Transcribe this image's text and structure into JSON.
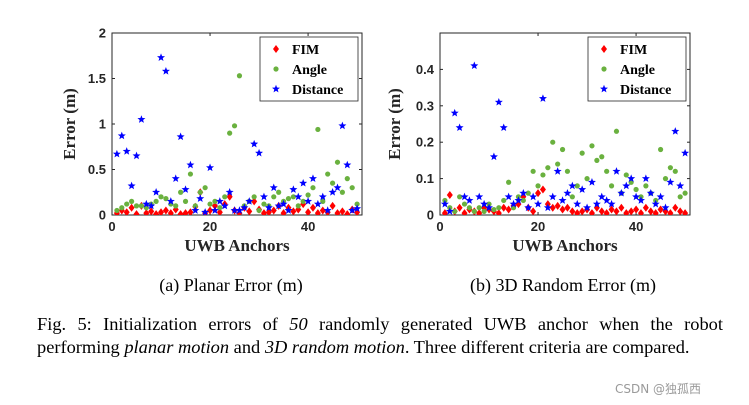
{
  "colors": {
    "fim": "#ff0000",
    "angle": "#6ab13f",
    "distance": "#0000ff",
    "axis": "#262626"
  },
  "chart_data": [
    {
      "type": "scatter",
      "subcaption": "(a) Planar Error (m)",
      "xlabel": "UWB Anchors",
      "ylabel": "Error (m)",
      "xlim": [
        0,
        51
      ],
      "ylim": [
        0,
        2
      ],
      "xticks": [
        0,
        20,
        40
      ],
      "yticks": [
        0,
        0.5,
        1,
        1.5,
        2
      ],
      "ytick_labels": [
        "0",
        "0.5",
        "1",
        "1.5",
        "2"
      ],
      "legend": {
        "placement": "top-right",
        "entries": [
          "FIM",
          "Angle",
          "Distance"
        ]
      },
      "series": [
        {
          "name": "FIM",
          "marker": "diamond",
          "color": "#ff0000",
          "x": [
            1,
            2,
            3,
            4,
            5,
            6,
            7,
            8,
            9,
            10,
            11,
            12,
            13,
            14,
            15,
            16,
            17,
            18,
            19,
            20,
            21,
            22,
            23,
            24,
            25,
            26,
            27,
            28,
            29,
            30,
            31,
            32,
            33,
            34,
            35,
            36,
            37,
            38,
            39,
            40,
            41,
            42,
            43,
            44,
            45,
            46,
            47,
            48,
            49,
            50
          ],
          "y": [
            0.02,
            0.05,
            0.03,
            0.08,
            0.01,
            0.1,
            0.02,
            0.04,
            0.01,
            0.03,
            0.05,
            0.02,
            0.06,
            0.01,
            0.02,
            0.03,
            0.09,
            0.25,
            0.02,
            0.05,
            0.1,
            0.03,
            0.12,
            0.2,
            0.05,
            0.02,
            0.08,
            0.04,
            0.15,
            0.06,
            0.02,
            0.03,
            0.05,
            0.1,
            0.02,
            0.08,
            0.04,
            0.06,
            0.12,
            0.03,
            0.08,
            0.02,
            0.05,
            0.03,
            0.1,
            0.02,
            0.04,
            0.01,
            0.06,
            0.03
          ]
        },
        {
          "name": "Angle",
          "marker": "circle",
          "color": "#6ab13f",
          "x": [
            1,
            2,
            3,
            4,
            5,
            6,
            7,
            8,
            9,
            10,
            11,
            12,
            13,
            14,
            15,
            16,
            17,
            18,
            19,
            20,
            21,
            22,
            23,
            24,
            25,
            26,
            27,
            28,
            29,
            30,
            31,
            32,
            33,
            34,
            35,
            36,
            37,
            38,
            39,
            40,
            41,
            42,
            43,
            44,
            45,
            46,
            47,
            48,
            49,
            50
          ],
          "y": [
            0.05,
            0.08,
            0.12,
            0.15,
            0.1,
            0.1,
            0.08,
            0.12,
            0.15,
            0.2,
            0.18,
            0.12,
            0.1,
            0.25,
            0.15,
            0.45,
            0.1,
            0.25,
            0.3,
            0.12,
            0.15,
            0.08,
            0.2,
            0.9,
            0.98,
            1.53,
            0.1,
            0.15,
            0.2,
            0.05,
            0.12,
            0.1,
            0.2,
            0.25,
            0.15,
            0.18,
            0.2,
            0.1,
            0.15,
            0.22,
            0.3,
            0.94,
            0.15,
            0.45,
            0.35,
            0.58,
            0.25,
            0.4,
            0.3,
            0.12
          ]
        },
        {
          "name": "Distance",
          "marker": "star",
          "color": "#0000ff",
          "x": [
            1,
            2,
            3,
            4,
            5,
            6,
            7,
            8,
            9,
            10,
            11,
            12,
            13,
            14,
            15,
            16,
            17,
            18,
            19,
            20,
            21,
            22,
            23,
            24,
            25,
            26,
            27,
            28,
            29,
            30,
            31,
            32,
            33,
            34,
            35,
            36,
            37,
            38,
            39,
            40,
            41,
            42,
            43,
            44,
            45,
            46,
            47,
            48,
            49,
            50
          ],
          "y": [
            0.67,
            0.87,
            0.7,
            0.32,
            0.65,
            1.05,
            0.12,
            0.1,
            0.25,
            1.73,
            1.58,
            0.15,
            0.4,
            0.86,
            0.28,
            0.55,
            0.05,
            0.18,
            0.03,
            0.52,
            0.05,
            0.15,
            0.1,
            0.25,
            0.05,
            0.05,
            0.08,
            0.15,
            0.78,
            0.68,
            0.2,
            0.08,
            0.3,
            0.1,
            0.12,
            0.05,
            0.28,
            0.2,
            0.35,
            0.15,
            0.4,
            0.12,
            0.2,
            0.05,
            0.25,
            0.3,
            0.98,
            0.55,
            0.05,
            0.07
          ]
        }
      ]
    },
    {
      "type": "scatter",
      "subcaption": "(b) 3D Random Error (m)",
      "xlabel": "UWB Anchors",
      "ylabel": "Error (m)",
      "xlim": [
        0,
        51
      ],
      "ylim": [
        0,
        0.5
      ],
      "xticks": [
        0,
        20,
        40
      ],
      "yticks": [
        0,
        0.1,
        0.2,
        0.3,
        0.4
      ],
      "ytick_labels": [
        "0",
        "0.1",
        "0.2",
        "0.3",
        "0.4"
      ],
      "legend": {
        "placement": "top-right",
        "entries": [
          "FIM",
          "Angle",
          "Distance"
        ]
      },
      "series": [
        {
          "name": "FIM",
          "marker": "diamond",
          "color": "#ff0000",
          "x": [
            1,
            2,
            3,
            4,
            5,
            6,
            7,
            8,
            9,
            10,
            11,
            12,
            13,
            14,
            15,
            16,
            17,
            18,
            19,
            20,
            21,
            22,
            23,
            24,
            25,
            26,
            27,
            28,
            29,
            30,
            31,
            32,
            33,
            34,
            35,
            36,
            37,
            38,
            39,
            40,
            41,
            42,
            43,
            44,
            45,
            46,
            47,
            48,
            49,
            50
          ],
          "y": [
            0.005,
            0.055,
            0.01,
            0.02,
            0.005,
            0.015,
            0.01,
            0.005,
            0.02,
            0.015,
            0.01,
            0.005,
            0.02,
            0.015,
            0.025,
            0.03,
            0.05,
            0.02,
            0.01,
            0.06,
            0.07,
            0.03,
            0.02,
            0.025,
            0.015,
            0.02,
            0.01,
            0.005,
            0.01,
            0.015,
            0.005,
            0.02,
            0.01,
            0.005,
            0.015,
            0.01,
            0.02,
            0.005,
            0.01,
            0.015,
            0.005,
            0.02,
            0.01,
            0.005,
            0.015,
            0.01,
            0.005,
            0.02,
            0.01,
            0.005
          ]
        },
        {
          "name": "Angle",
          "marker": "circle",
          "color": "#6ab13f",
          "x": [
            1,
            2,
            3,
            4,
            5,
            6,
            7,
            8,
            9,
            10,
            11,
            12,
            13,
            14,
            15,
            16,
            17,
            18,
            19,
            20,
            21,
            22,
            23,
            24,
            25,
            26,
            27,
            28,
            29,
            30,
            31,
            32,
            33,
            34,
            35,
            36,
            37,
            38,
            39,
            40,
            41,
            42,
            43,
            44,
            45,
            46,
            47,
            48,
            49,
            50
          ],
          "y": [
            0.04,
            0.02,
            0.01,
            0.05,
            0.03,
            0.02,
            0.01,
            0.02,
            0.01,
            0.03,
            0.015,
            0.02,
            0.04,
            0.09,
            0.02,
            0.05,
            0.04,
            0.06,
            0.12,
            0.08,
            0.11,
            0.13,
            0.2,
            0.14,
            0.18,
            0.12,
            0.05,
            0.08,
            0.17,
            0.1,
            0.19,
            0.15,
            0.16,
            0.12,
            0.08,
            0.23,
            0.06,
            0.11,
            0.09,
            0.07,
            0.05,
            0.08,
            0.06,
            0.04,
            0.18,
            0.1,
            0.13,
            0.12,
            0.05,
            0.06
          ]
        },
        {
          "name": "Distance",
          "marker": "star",
          "color": "#0000ff",
          "x": [
            1,
            2,
            3,
            4,
            5,
            6,
            7,
            8,
            9,
            10,
            11,
            12,
            13,
            14,
            15,
            16,
            17,
            18,
            19,
            20,
            21,
            22,
            23,
            24,
            25,
            26,
            27,
            28,
            29,
            30,
            31,
            32,
            33,
            34,
            35,
            36,
            37,
            38,
            39,
            40,
            41,
            42,
            43,
            44,
            45,
            46,
            47,
            48,
            49,
            50
          ],
          "y": [
            0.03,
            0.01,
            0.28,
            0.24,
            0.05,
            0.04,
            0.41,
            0.05,
            0.03,
            0.02,
            0.16,
            0.31,
            0.24,
            0.05,
            0.03,
            0.04,
            0.06,
            0.02,
            0.05,
            0.03,
            0.32,
            0.02,
            0.05,
            0.12,
            0.04,
            0.06,
            0.08,
            0.03,
            0.07,
            0.02,
            0.09,
            0.03,
            0.05,
            0.04,
            0.03,
            0.12,
            0.06,
            0.08,
            0.1,
            0.05,
            0.04,
            0.1,
            0.06,
            0.03,
            0.05,
            0.02,
            0.09,
            0.23,
            0.08,
            0.17
          ]
        }
      ]
    }
  ],
  "caption": {
    "lead": "Fig. 5: Initialization errors of ",
    "count": "50",
    "mid1": " randomly generated UWB anchor when the robot performing ",
    "motion1": "planar motion",
    "mid2": " and ",
    "motion2": "3D random motion",
    "tail": ". Three different criteria are compared."
  },
  "watermark": "CSDN @独孤西"
}
